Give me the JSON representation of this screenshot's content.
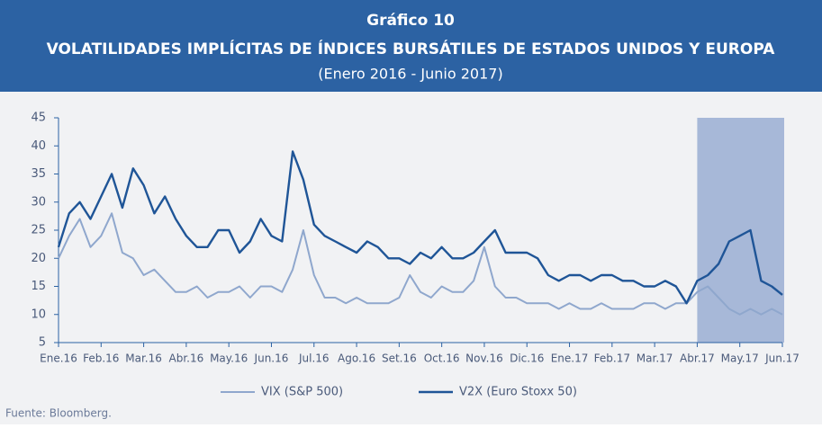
{
  "chart_data": {
    "type": "line",
    "title": "Gráfico 10",
    "subtitle": "VOLATILIDADES IMPLÍCITAS DE ÍNDICES BURSÁTILES DE ESTADOS UNIDOS Y EUROPA",
    "period": "(Enero 2016 -  Junio 2017)",
    "source": "Fuente: Bloomberg.",
    "categories": [
      "Ene.16",
      null,
      null,
      null,
      "Feb.16",
      null,
      null,
      null,
      "Mar.16",
      null,
      null,
      null,
      "Abr.16",
      null,
      null,
      null,
      "May.16",
      null,
      null,
      null,
      "Jun.16",
      null,
      null,
      null,
      "Jul.16",
      null,
      null,
      null,
      "Ago.16",
      null,
      null,
      null,
      "Set.16",
      null,
      null,
      null,
      "Oct.16",
      null,
      null,
      null,
      "Nov.16",
      null,
      null,
      null,
      "Dic.16",
      null,
      null,
      null,
      "Ene.17",
      null,
      null,
      null,
      "Feb.17",
      null,
      null,
      null,
      "Mar.17",
      null,
      null,
      null,
      "Abr.17",
      null,
      null,
      null,
      "May.17",
      null,
      null,
      null,
      "Jun.17"
    ],
    "series": [
      {
        "name": "VIX (S&P 500)",
        "color": "#8fa7cd",
        "values": [
          20,
          24,
          27,
          22,
          24,
          28,
          21,
          20,
          17,
          18,
          16,
          14,
          14,
          15,
          13,
          14,
          14,
          15,
          13,
          15,
          15,
          14,
          18,
          25,
          17,
          13,
          13,
          12,
          13,
          12,
          12,
          12,
          13,
          17,
          14,
          13,
          15,
          14,
          14,
          16,
          22,
          15,
          13,
          13,
          12,
          12,
          12,
          11,
          12,
          11,
          11,
          12,
          11,
          11,
          11,
          12,
          12,
          11,
          12,
          12,
          14,
          15,
          13,
          11,
          10,
          11,
          10,
          11,
          10
        ]
      },
      {
        "name": "V2X (Euro Stoxx 50)",
        "color": "#1f5597",
        "values": [
          22,
          28,
          30,
          27,
          31,
          35,
          29,
          36,
          33,
          28,
          31,
          27,
          24,
          22,
          22,
          25,
          25,
          21,
          23,
          27,
          24,
          23,
          39,
          34,
          26,
          24,
          23,
          22,
          21,
          23,
          22,
          20,
          20,
          19,
          21,
          20,
          22,
          20,
          20,
          21,
          23,
          25,
          21,
          21,
          21,
          20,
          17,
          16,
          17,
          17,
          16,
          17,
          17,
          16,
          16,
          15,
          15,
          16,
          15,
          12,
          16,
          17,
          19,
          23,
          24,
          25,
          16,
          15,
          13.5
        ]
      }
    ],
    "ylim": [
      5,
      45
    ],
    "yticks": [
      5,
      10,
      15,
      20,
      25,
      30,
      35,
      40,
      45
    ],
    "highlight_from": "Abr.17",
    "highlight_color": "#9fb1d5",
    "grid": false
  }
}
